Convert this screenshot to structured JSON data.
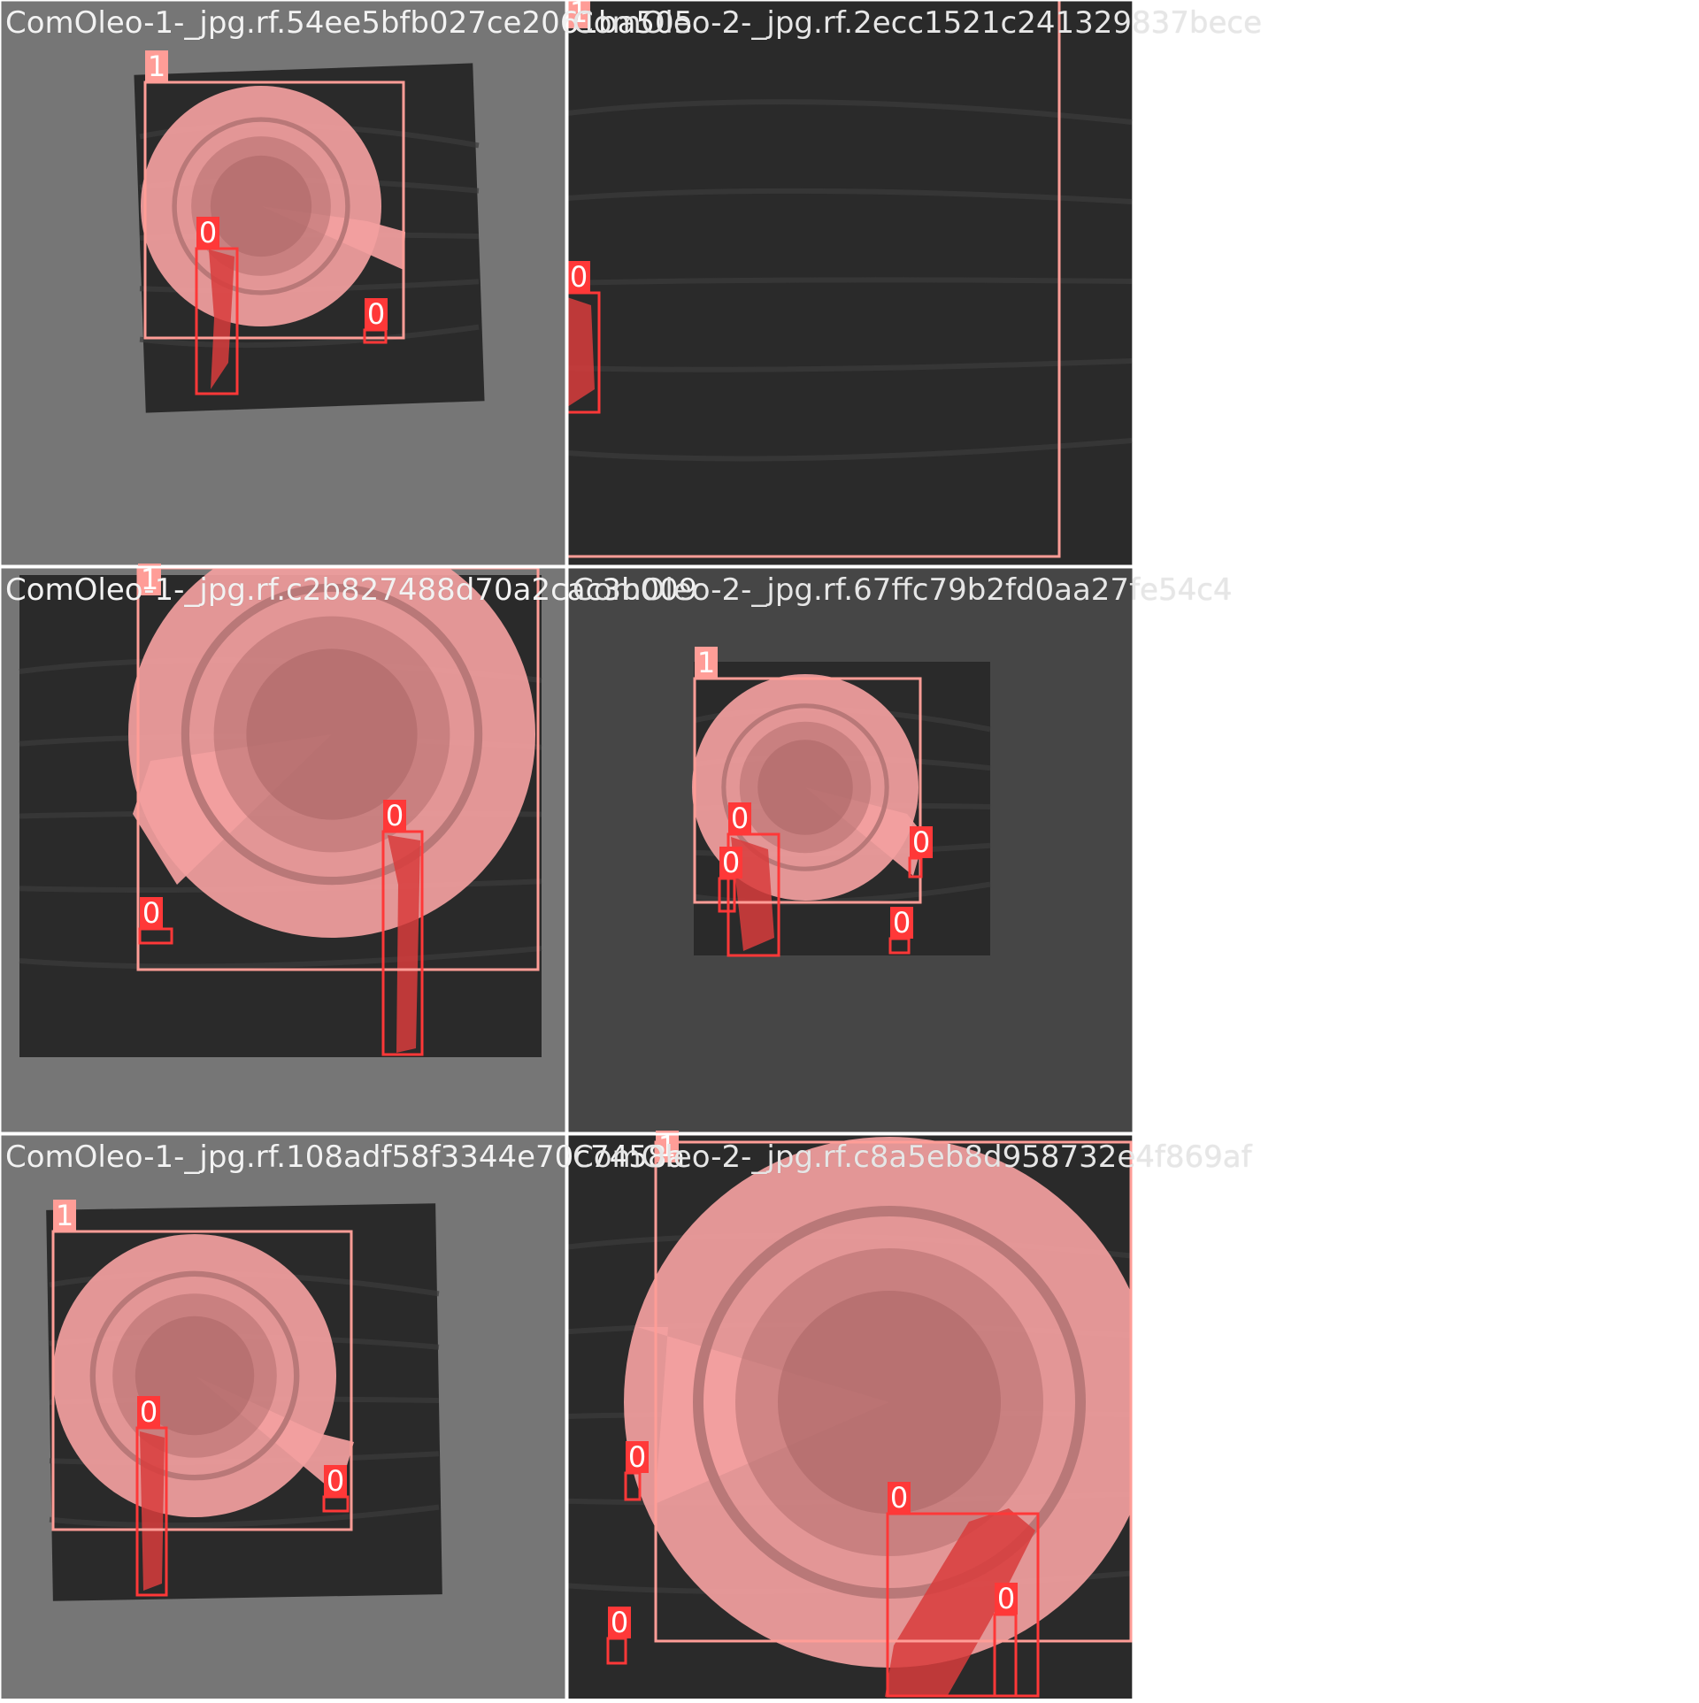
{
  "colors": {
    "page_bg": "#ffffff",
    "tile_pad_gray": "#767676",
    "tile_pad_dark": "#464646",
    "photo_bg": "#2a2a2a",
    "class_1": "#ff9d97",
    "class_1_mask": "#f3a0a0",
    "class_0": "#ff3838",
    "class_0_mask": "#d83c3c",
    "label_text": "#ffffff"
  },
  "tiles": [
    {
      "filename": "ComOleo-1-_jpg.rf.54ee5bfb027ce2061ba505",
      "detections": [
        {
          "class": "1"
        },
        {
          "class": "0"
        },
        {
          "class": "0"
        }
      ]
    },
    {
      "filename": "ComOleo-2-_jpg.rf.2ecc1521c241329837bece",
      "detections": [
        {
          "class": "1"
        },
        {
          "class": "0"
        }
      ]
    },
    {
      "filename": "ComOleo-1-_jpg.rf.c2b827488d70a2cac3b009",
      "detections": [
        {
          "class": "1"
        },
        {
          "class": "0"
        },
        {
          "class": "0"
        }
      ]
    },
    {
      "filename": "ComOleo-2-_jpg.rf.67ffc79b2fd0aa27fe54c4",
      "detections": [
        {
          "class": "1"
        },
        {
          "class": "0"
        },
        {
          "class": "0"
        },
        {
          "class": "0"
        },
        {
          "class": "0"
        }
      ]
    },
    {
      "filename": "ComOleo-1-_jpg.rf.108adf58f3344e70c7458a",
      "detections": [
        {
          "class": "1"
        },
        {
          "class": "0"
        },
        {
          "class": "0"
        }
      ]
    },
    {
      "filename": "ComOleo-2-_jpg.rf.c8a5eb8d958732e4f869af",
      "detections": [
        {
          "class": "1"
        },
        {
          "class": "0"
        },
        {
          "class": "0"
        },
        {
          "class": "0"
        },
        {
          "class": "0"
        }
      ]
    }
  ]
}
